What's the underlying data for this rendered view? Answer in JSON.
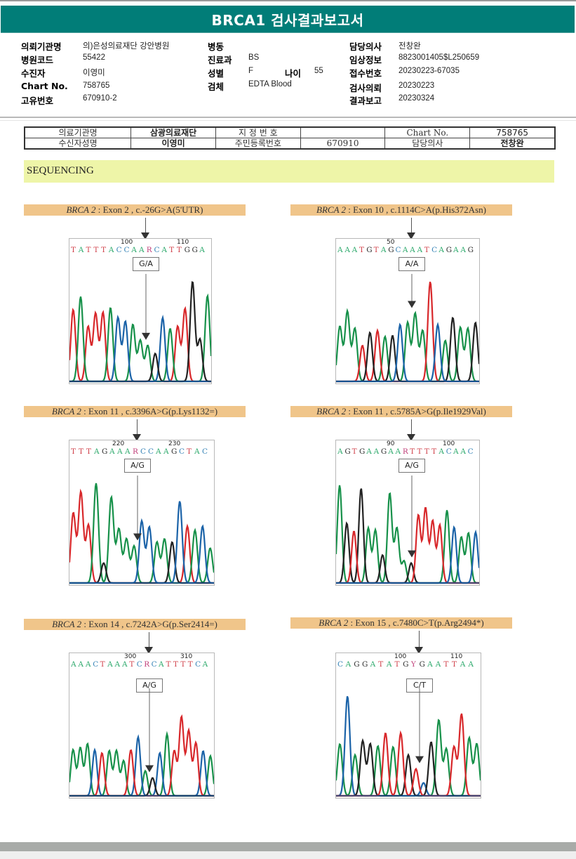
{
  "report": {
    "title": "BRCA1 검사결과보고서"
  },
  "patient_info": {
    "institution_label": "의뢰기관명",
    "institution_value": "의)은성의료재단 강안병원",
    "hospital_code_label": "병원코드",
    "hospital_code_value": "55422",
    "recipient_label": "수진자",
    "recipient_value": "이영미",
    "chart_no_label": "Chart No.",
    "chart_no_value": "758765",
    "unique_no_label": "고유번호",
    "unique_no_value": "670910-2",
    "ward_label": "병동",
    "ward_value": "",
    "department_label": "진료과",
    "department_value": "BS",
    "sex_label": "성별",
    "sex_value": "F",
    "age_label": "나이",
    "age_value": "55",
    "specimen_label": "검체",
    "specimen_value": "EDTA Blood",
    "doctor_label": "담당의사",
    "doctor_value": "전창완",
    "clinical_info_label": "임상정보",
    "clinical_info_value": "8823001405$L250659",
    "receipt_no_label": "접수번호",
    "receipt_no_value": "20230223-67035",
    "request_date_label": "검사의뢰",
    "request_date_value": "20230223",
    "report_date_label": "결과보고",
    "report_date_value": "20230324"
  },
  "summary_table": {
    "rows": [
      [
        "의료기관명",
        "삼광의료재단",
        "지 정 번 호",
        "",
        "Chart No.",
        "758765"
      ],
      [
        "수신자성명",
        "이영미",
        "주민등록번호",
        "670910",
        "담당의사",
        "전창완"
      ]
    ]
  },
  "section": {
    "title": "SEQUENCING"
  },
  "variants": [
    {
      "gene": "BRCA 2",
      "detail": ": Exon 2 , c.-26G>A(5'UTR)",
      "tick_left": "100",
      "tick_right": "110",
      "bases": "TATTTACCAARCATTGGA",
      "call": "G/A",
      "peaks": [
        {
          "c": "R",
          "h": 0.72
        },
        {
          "c": "G",
          "h": 0.85
        },
        {
          "c": "R",
          "h": 0.55
        },
        {
          "c": "R",
          "h": 0.68
        },
        {
          "c": "R",
          "h": 0.69
        },
        {
          "c": "G",
          "h": 0.74
        },
        {
          "c": "B",
          "h": 0.64
        },
        {
          "c": "B",
          "h": 0.6
        },
        {
          "c": "G",
          "h": 0.57
        },
        {
          "c": "G",
          "h": 0.41
        },
        {
          "c": "G",
          "h": 0.36
        },
        {
          "c": "K",
          "h": 0.28
        },
        {
          "c": "B",
          "h": 0.64
        },
        {
          "c": "G",
          "h": 0.53
        },
        {
          "c": "R",
          "h": 0.55
        },
        {
          "c": "R",
          "h": 0.73
        },
        {
          "c": "K",
          "h": 1.0
        },
        {
          "c": "K",
          "h": 0.42
        },
        {
          "c": "G",
          "h": 0.86
        }
      ]
    },
    {
      "gene": "BRCA 2",
      "detail": ": Exon 10 , c.1114C>A(p.His372Asn)",
      "tick_left": "50",
      "tick_right": "",
      "bases": "AAATGTAGCAAATCAGAAG",
      "call": "A/A",
      "peaks": [
        {
          "c": "G",
          "h": 0.55
        },
        {
          "c": "G",
          "h": 0.7
        },
        {
          "c": "G",
          "h": 0.53
        },
        {
          "c": "R",
          "h": 0.36
        },
        {
          "c": "K",
          "h": 0.49
        },
        {
          "c": "R",
          "h": 0.51
        },
        {
          "c": "G",
          "h": 0.45
        },
        {
          "c": "K",
          "h": 0.46
        },
        {
          "c": "B",
          "h": 0.57
        },
        {
          "c": "G",
          "h": 0.59
        },
        {
          "c": "G",
          "h": 0.68
        },
        {
          "c": "G",
          "h": 0.51
        },
        {
          "c": "R",
          "h": 1.0
        },
        {
          "c": "B",
          "h": 0.57
        },
        {
          "c": "G",
          "h": 0.41
        },
        {
          "c": "K",
          "h": 0.64
        },
        {
          "c": "G",
          "h": 0.54
        },
        {
          "c": "G",
          "h": 0.53
        },
        {
          "c": "K",
          "h": 0.59
        }
      ]
    },
    {
      "gene": "BRCA 2",
      "detail": ": Exon 11 , c.3396A>G(p.Lys1132=)",
      "tick_left": "220",
      "tick_right": "230",
      "bases": "TTTAGAAARCCAAGCTAC",
      "call": "A/G",
      "peaks": [
        {
          "c": "R",
          "h": 0.7
        },
        {
          "c": "R",
          "h": 0.91
        },
        {
          "c": "R",
          "h": 0.58
        },
        {
          "c": "G",
          "h": 1.0
        },
        {
          "c": "K",
          "h": 0.2
        },
        {
          "c": "G",
          "h": 0.86
        },
        {
          "c": "G",
          "h": 0.54
        },
        {
          "c": "G",
          "h": 0.44
        },
        {
          "c": "G",
          "h": 0.37
        },
        {
          "c": "B",
          "h": 0.62
        },
        {
          "c": "B",
          "h": 0.56
        },
        {
          "c": "G",
          "h": 0.41
        },
        {
          "c": "G",
          "h": 0.44
        },
        {
          "c": "K",
          "h": 0.41
        },
        {
          "c": "B",
          "h": 0.82
        },
        {
          "c": "R",
          "h": 0.57
        },
        {
          "c": "G",
          "h": 0.53
        },
        {
          "c": "B",
          "h": 0.57
        },
        {
          "c": "G",
          "h": 0.35
        }
      ]
    },
    {
      "gene": "BRCA 2",
      "detail": ": Exon 11 , c.5785A>G(p.Ile1929Val)",
      "tick_left": "90",
      "tick_right": "100",
      "bases": "AGTGAAGAARTTTTACAAC",
      "call": "A/G",
      "peaks": [
        {
          "c": "G",
          "h": 0.98
        },
        {
          "c": "K",
          "h": 0.6
        },
        {
          "c": "R",
          "h": 0.52
        },
        {
          "c": "K",
          "h": 0.95
        },
        {
          "c": "G",
          "h": 0.55
        },
        {
          "c": "G",
          "h": 0.53
        },
        {
          "c": "K",
          "h": 0.28
        },
        {
          "c": "G",
          "h": 0.9
        },
        {
          "c": "G",
          "h": 0.55
        },
        {
          "c": "G",
          "h": 0.22
        },
        {
          "c": "K",
          "h": 0.2
        },
        {
          "c": "R",
          "h": 0.68
        },
        {
          "c": "R",
          "h": 0.75
        },
        {
          "c": "R",
          "h": 0.62
        },
        {
          "c": "R",
          "h": 0.58
        },
        {
          "c": "G",
          "h": 0.73
        },
        {
          "c": "B",
          "h": 0.56
        },
        {
          "c": "G",
          "h": 0.46
        },
        {
          "c": "G",
          "h": 0.5
        },
        {
          "c": "B",
          "h": 0.51
        }
      ]
    },
    {
      "gene": "BRCA 2",
      "detail": ": Exon 14 , c.7242A>G(p.Ser2414=)",
      "tick_left": "300",
      "tick_right": "310",
      "bases": "AAACTAAATCRCATTTTCA",
      "call": "A/G",
      "peaks": [
        {
          "c": "G",
          "h": 0.46
        },
        {
          "c": "G",
          "h": 0.48
        },
        {
          "c": "G",
          "h": 0.52
        },
        {
          "c": "B",
          "h": 0.46
        },
        {
          "c": "R",
          "h": 0.43
        },
        {
          "c": "G",
          "h": 0.45
        },
        {
          "c": "G",
          "h": 0.45
        },
        {
          "c": "G",
          "h": 0.35
        },
        {
          "c": "R",
          "h": 0.46
        },
        {
          "c": "B",
          "h": 0.59
        },
        {
          "c": "G",
          "h": 0.25
        },
        {
          "c": "K",
          "h": 0.18
        },
        {
          "c": "B",
          "h": 0.43
        },
        {
          "c": "G",
          "h": 0.62
        },
        {
          "c": "R",
          "h": 0.45
        },
        {
          "c": "R",
          "h": 0.79
        },
        {
          "c": "R",
          "h": 0.65
        },
        {
          "c": "R",
          "h": 0.53
        },
        {
          "c": "B",
          "h": 0.45
        },
        {
          "c": "G",
          "h": 0.4
        }
      ]
    },
    {
      "gene": "BRCA 2",
      "detail": ": Exon 15 , c.7480C>T(p.Arg2494*)",
      "tick_left": "100",
      "tick_right": "110",
      "bases": "CAGGATATGYGAATTAA",
      "call": "C/T",
      "peaks": [
        {
          "c": "G",
          "h": 0.52
        },
        {
          "c": "B",
          "h": 1.0
        },
        {
          "c": "G",
          "h": 0.41
        },
        {
          "c": "K",
          "h": 0.55
        },
        {
          "c": "K",
          "h": 0.52
        },
        {
          "c": "G",
          "h": 0.5
        },
        {
          "c": "R",
          "h": 0.63
        },
        {
          "c": "G",
          "h": 0.49
        },
        {
          "c": "R",
          "h": 0.63
        },
        {
          "c": "K",
          "h": 0.41
        },
        {
          "c": "R",
          "h": 0.27
        },
        {
          "c": "B",
          "h": 0.13
        },
        {
          "c": "K",
          "h": 0.54
        },
        {
          "c": "G",
          "h": 0.76
        },
        {
          "c": "G",
          "h": 0.47
        },
        {
          "c": "R",
          "h": 0.49
        },
        {
          "c": "R",
          "h": 0.82
        },
        {
          "c": "G",
          "h": 0.58
        },
        {
          "c": "G",
          "h": 0.52
        }
      ]
    }
  ],
  "colors": {
    "header_bg": "#017d78",
    "caption_bg": "#f0c58a",
    "section_bg": "#eef5a8",
    "trace_green": "#17914a",
    "trace_red": "#d8282b",
    "trace_blue": "#1b63a8",
    "trace_black": "#222222",
    "base_A": "#2aa86a",
    "base_C": "#3a86b8",
    "base_G": "#333333",
    "base_T": "#d0404a",
    "base_ambig": "#c0407a"
  }
}
